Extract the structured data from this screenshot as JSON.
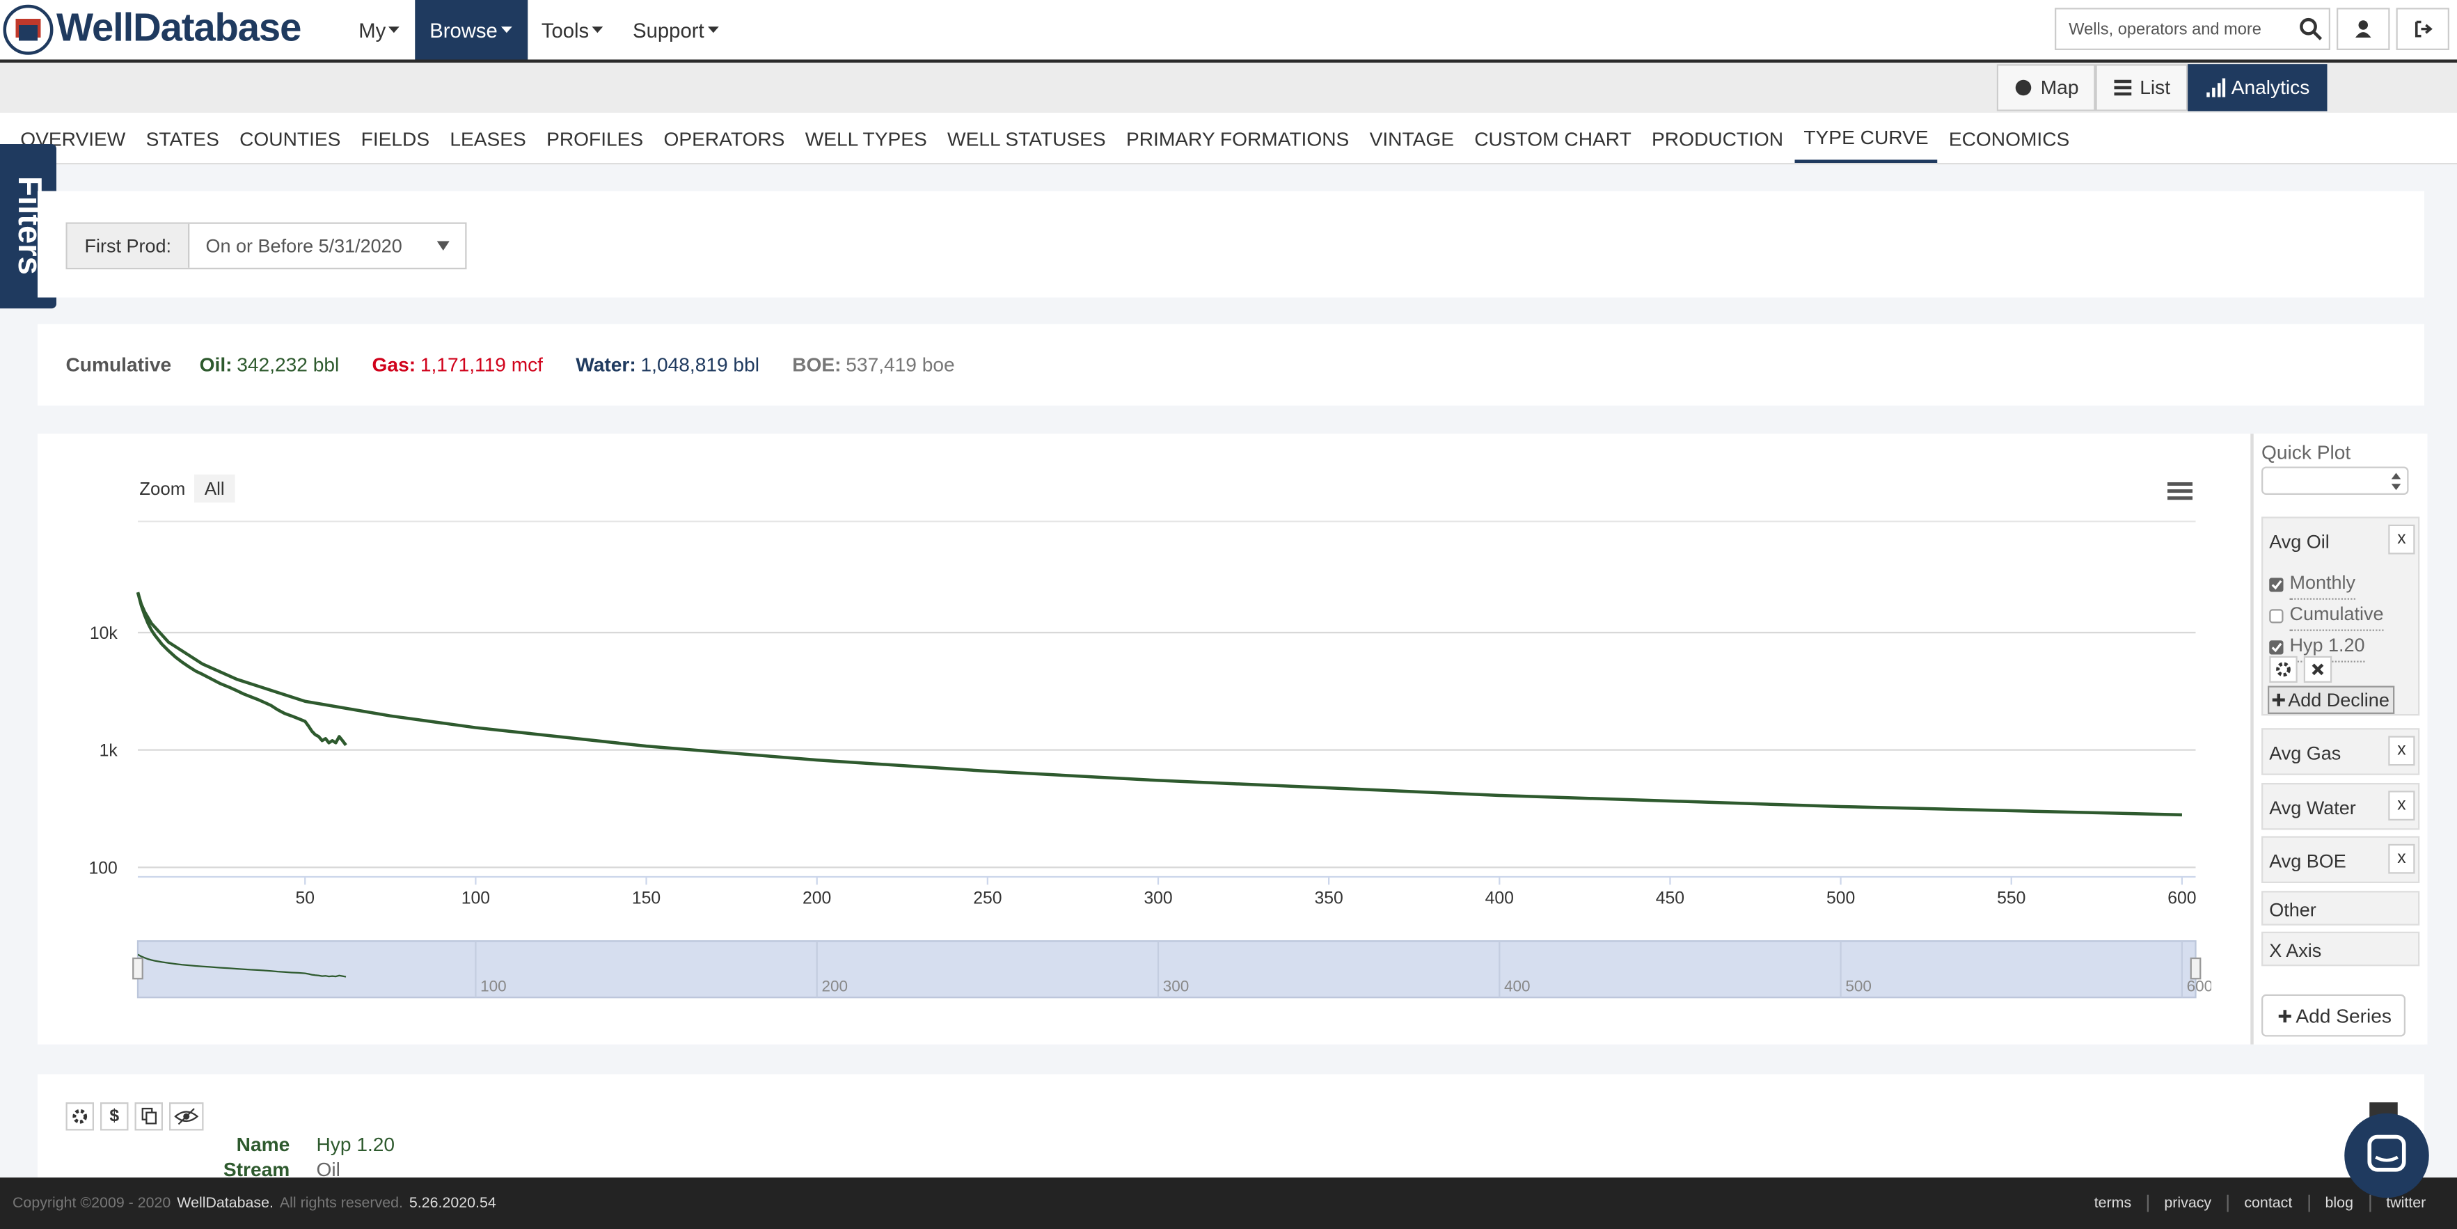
{
  "header": {
    "logo": "WellDatabase",
    "menu": [
      "My",
      "Browse",
      "Tools",
      "Support"
    ],
    "search_placeholder": "Wells, operators and more"
  },
  "view_buttons": [
    "Map",
    "List",
    "Analytics"
  ],
  "tabs": [
    "OVERVIEW",
    "STATES",
    "COUNTIES",
    "FIELDS",
    "LEASES",
    "PROFILES",
    "OPERATORS",
    "WELL TYPES",
    "WELL STATUSES",
    "PRIMARY FORMATIONS",
    "VINTAGE",
    "CUSTOM CHART",
    "PRODUCTION",
    "TYPE CURVE",
    "ECONOMICS"
  ],
  "filters_tab": "Filters",
  "filter": {
    "label": "First Prod:",
    "value": "On or Before 5/31/2020"
  },
  "cumulative": {
    "title": "Cumulative",
    "items": [
      {
        "label": "Oil:",
        "value": "342,232 bbl"
      },
      {
        "label": "Gas:",
        "value": "1,171,119 mcf"
      },
      {
        "label": "Water:",
        "value": "1,048,819 bbl"
      },
      {
        "label": "BOE:",
        "value": "537,419 boe"
      }
    ]
  },
  "chart_data": {
    "type": "line",
    "y_scale": "log",
    "zoom_label": "Zoom",
    "zoom_button": "All",
    "xlim": [
      1,
      604
    ],
    "xticks": [
      50,
      100,
      150,
      200,
      250,
      300,
      350,
      400,
      450,
      500,
      550,
      600
    ],
    "ylim": [
      83,
      88500
    ],
    "yticks": [
      100,
      {
        "value": 1000,
        "label": "1k"
      },
      {
        "value": 10000,
        "label": "10k"
      }
    ],
    "grid": true,
    "navigator_xticks": [
      100,
      200,
      300,
      400,
      500,
      600
    ],
    "series": [
      {
        "name": "Monthly",
        "color": "#2e5a2e",
        "x": [
          1,
          2,
          3,
          4,
          5,
          6,
          8,
          10,
          12,
          14,
          16,
          18,
          20,
          22,
          25,
          28,
          30,
          32,
          34,
          36,
          38,
          40,
          42,
          44,
          46,
          48,
          50,
          51,
          52,
          53,
          54,
          55,
          56,
          57,
          58,
          59,
          60,
          61,
          62
        ],
        "values": [
          22000,
          17000,
          14000,
          12000,
          10500,
          9500,
          8000,
          7000,
          6200,
          5600,
          5100,
          4700,
          4400,
          4100,
          3700,
          3400,
          3200,
          3000,
          2850,
          2700,
          2550,
          2400,
          2200,
          2050,
          1950,
          1850,
          1750,
          1600,
          1450,
          1350,
          1300,
          1200,
          1250,
          1150,
          1200,
          1150,
          1300,
          1200,
          1100
        ]
      },
      {
        "name": "Hyp 1.20",
        "color": "#2e5a2e",
        "x": [
          1,
          2,
          3,
          5,
          10,
          20,
          30,
          50,
          75,
          100,
          150,
          200,
          250,
          300,
          400,
          500,
          600
        ],
        "values": [
          22000,
          17500,
          15000,
          12000,
          8300,
          5400,
          4000,
          2600,
          1950,
          1550,
          1080,
          820,
          660,
          550,
          410,
          330,
          280
        ]
      }
    ]
  },
  "sidebar": {
    "quick_plot": "Quick Plot",
    "avg_oil": "Avg Oil",
    "close": "x",
    "cumulative_option": "Cumulative",
    "add_decline": "Add Decline",
    "groups": [
      "Avg Gas",
      "Avg Water",
      "Avg BOE"
    ],
    "sections": [
      "Other",
      "X Axis"
    ],
    "add_series": "Add Series"
  },
  "detail": {
    "currency_button": "$",
    "name_label": "Name",
    "stream_label": "Stream",
    "stream_value": "Oil"
  },
  "footer": {
    "copyright": "Copyright ©2009 - 2020",
    "brand": "WellDatabase.",
    "rights": "All rights reserved.",
    "version": "5.26.2020.54",
    "links": [
      "terms",
      "privacy",
      "contact",
      "blog",
      "twitter"
    ]
  }
}
